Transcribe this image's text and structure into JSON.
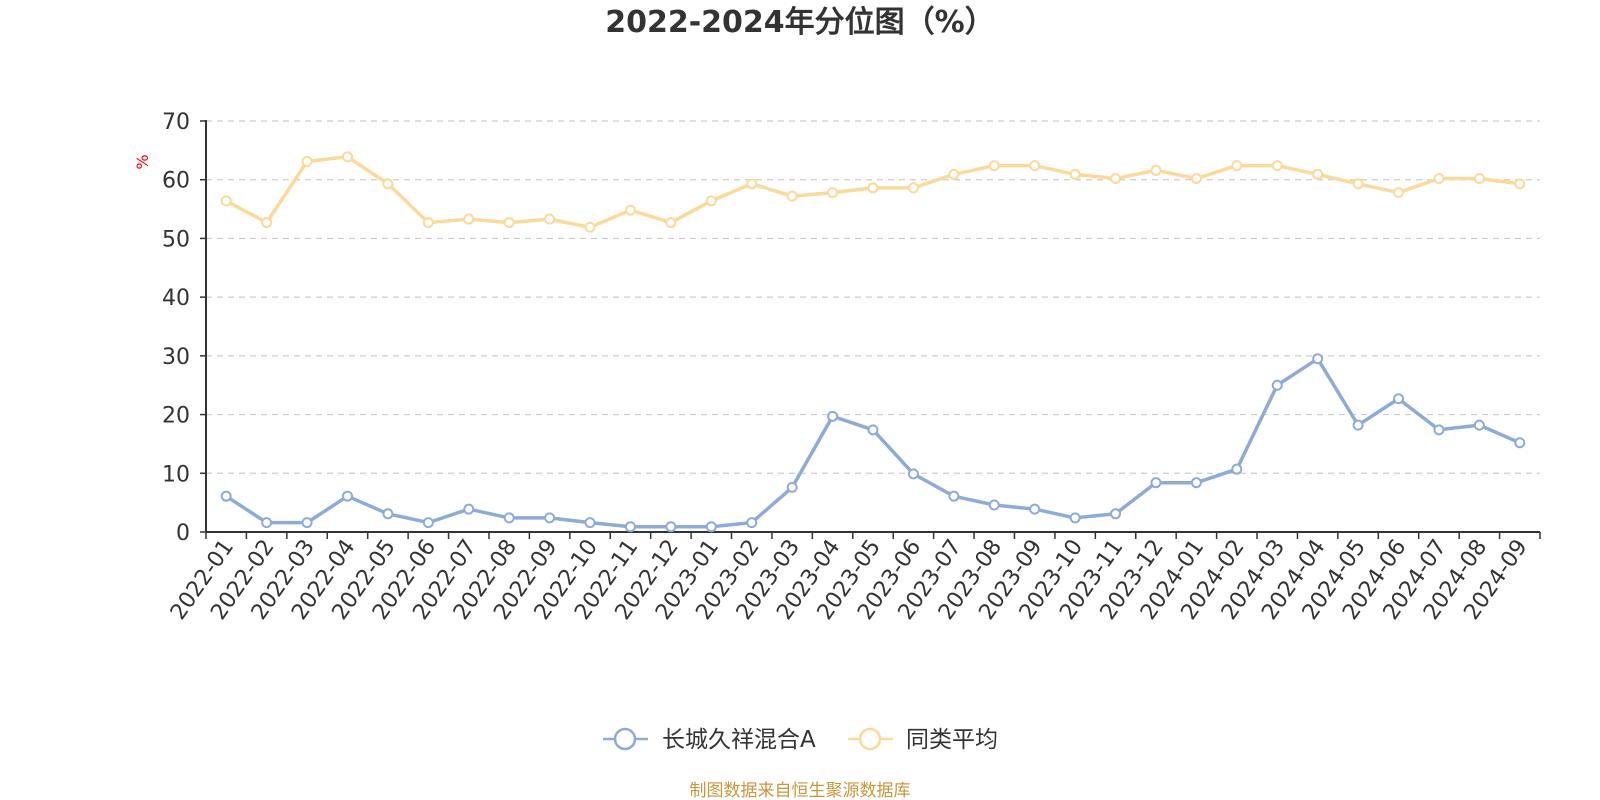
{
  "chart_data": {
    "type": "line",
    "title": "2022-2024年分位图（%）",
    "ylabel": "%",
    "ylim": [
      0,
      70
    ],
    "yticks": [
      "0",
      "10",
      "20",
      "30",
      "40",
      "50",
      "60",
      "70"
    ],
    "grid": true,
    "legend_position": "bottom-center",
    "categories": [
      "2022-01",
      "2022-02",
      "2022-03",
      "2022-04",
      "2022-05",
      "2022-06",
      "2022-07",
      "2022-08",
      "2022-09",
      "2022-10",
      "2022-11",
      "2022-12",
      "2023-01",
      "2023-02",
      "2023-03",
      "2023-04",
      "2023-05",
      "2023-06",
      "2023-07",
      "2023-08",
      "2023-09",
      "2023-10",
      "2023-11",
      "2023-12",
      "2024-01",
      "2024-02",
      "2024-03",
      "2024-04",
      "2024-05",
      "2024-06",
      "2024-07",
      "2024-08",
      "2024-09"
    ],
    "series": [
      {
        "name": "长城久祥混合A",
        "color": "#8eabd8",
        "values": [
          6.1,
          1.6,
          1.6,
          6.1,
          3.1,
          1.6,
          3.9,
          2.4,
          2.4,
          1.6,
          0.9,
          0.9,
          0.9,
          1.6,
          7.6,
          19.7,
          17.4,
          9.9,
          6.1,
          4.6,
          3.9,
          2.4,
          3.1,
          8.4,
          8.4,
          10.7,
          25.0,
          29.5,
          18.2,
          22.7,
          17.4,
          18.2,
          15.2
        ]
      },
      {
        "name": "同类平均",
        "color": "#fbd99a",
        "values": [
          56.4,
          52.7,
          63.1,
          63.9,
          59.3,
          52.7,
          53.3,
          52.7,
          53.3,
          51.9,
          54.8,
          52.7,
          56.4,
          59.3,
          57.2,
          57.8,
          58.6,
          58.6,
          60.9,
          62.4,
          62.4,
          60.9,
          60.2,
          61.6,
          60.2,
          62.4,
          62.4,
          60.9,
          59.3,
          57.8,
          60.2,
          60.2,
          59.3
        ]
      }
    ]
  },
  "source_text": "制图数据来自恒生聚源数据库",
  "colors": {
    "axis": "#333333",
    "grid": "#cccccc",
    "unit_label": "#ff0000",
    "source_text": "#c8963c"
  }
}
